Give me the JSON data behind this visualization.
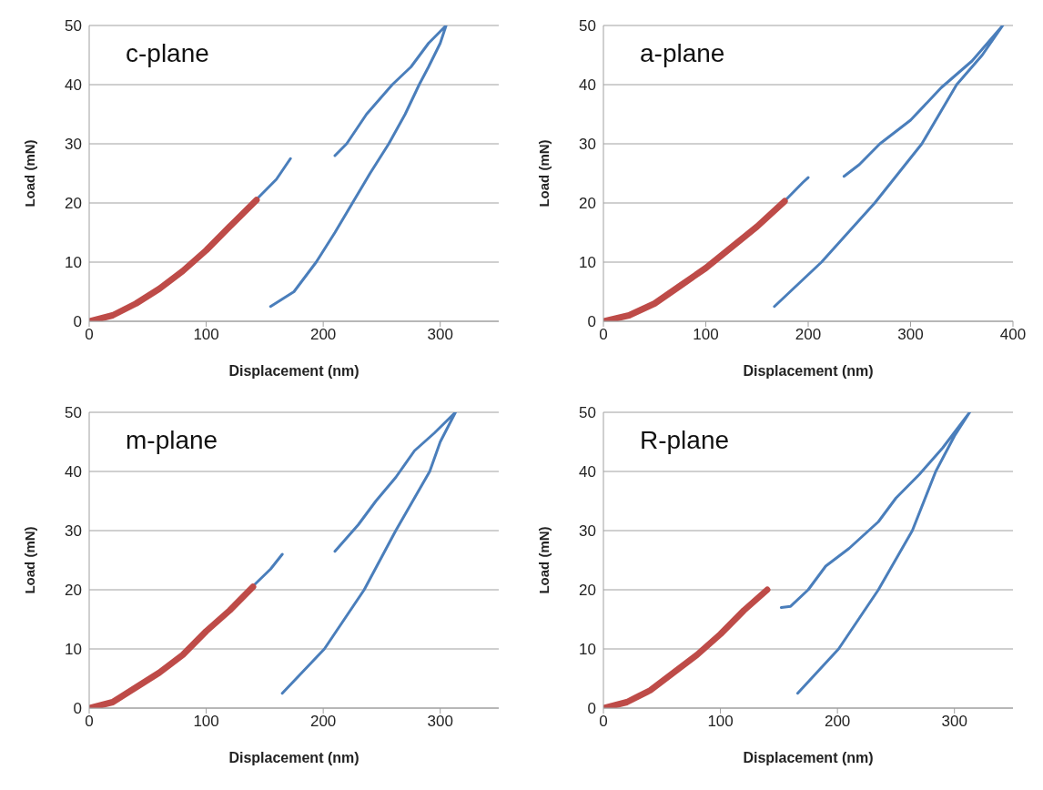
{
  "chart_data": [
    {
      "type": "line",
      "title": "c-plane",
      "xlabel": "Displacement (nm)",
      "ylabel": "Load (mN)",
      "xlim": [
        0,
        350
      ],
      "xticks": [
        0,
        100,
        200,
        300
      ],
      "ylim": [
        0,
        50
      ],
      "yticks": [
        0,
        10,
        20,
        30,
        40,
        50
      ],
      "grid": "y",
      "series": [
        {
          "color": "#4a7ebb",
          "x": [
            145,
            160,
            172,
            190,
            210,
            220,
            237,
            259,
            275,
            290,
            300,
            305,
            300,
            290,
            282,
            270,
            256,
            240,
            225,
            210,
            194,
            175,
            155
          ],
          "values": [
            21,
            24,
            27.5,
            null,
            28,
            30,
            35,
            40,
            43,
            47,
            49,
            50,
            47,
            43,
            40,
            35,
            30,
            25,
            20,
            15,
            10,
            5,
            2.5
          ]
        },
        {
          "color": "#be4b48",
          "x": [
            0,
            20,
            40,
            60,
            80,
            100,
            120,
            143
          ],
          "values": [
            0,
            1,
            3,
            5.5,
            8.5,
            12,
            16,
            20.5
          ]
        }
      ]
    },
    {
      "type": "line",
      "title": "a-plane",
      "xlabel": "Displacement (nm)",
      "ylabel": "Load (mN)",
      "xlim": [
        0,
        400
      ],
      "xticks": [
        0,
        100,
        200,
        300,
        400
      ],
      "ylim": [
        0,
        50
      ],
      "yticks": [
        0,
        10,
        20,
        30,
        40,
        50
      ],
      "grid": "y",
      "series": [
        {
          "color": "#4a7ebb",
          "x": [
            178,
            195,
            200,
            218,
            235,
            250,
            270,
            300,
            330,
            360,
            390,
            370,
            345,
            311,
            265,
            213,
            167
          ],
          "values": [
            20.5,
            23.5,
            24.3,
            null,
            24.5,
            26.5,
            30,
            34,
            39.5,
            44,
            50,
            45,
            40,
            30,
            20,
            10,
            2.5
          ]
        },
        {
          "color": "#be4b48",
          "x": [
            0,
            25,
            50,
            75,
            100,
            125,
            150,
            177
          ],
          "values": [
            0,
            1,
            3,
            6,
            9,
            12.5,
            16,
            20.3
          ]
        }
      ]
    },
    {
      "type": "line",
      "title": "m-plane",
      "xlabel": "Displacement (nm)",
      "ylabel": "Load (mN)",
      "xlim": [
        0,
        350
      ],
      "xticks": [
        0,
        100,
        200,
        300
      ],
      "ylim": [
        0,
        50
      ],
      "yticks": [
        0,
        10,
        20,
        30,
        40,
        50
      ],
      "grid": "y",
      "series": [
        {
          "color": "#4a7ebb",
          "x": [
            142,
            155,
            165,
            188,
            210,
            230,
            245,
            262,
            278,
            295,
            313,
            300,
            291,
            262,
            235,
            201,
            165
          ],
          "values": [
            21,
            23.5,
            26,
            null,
            26.5,
            31,
            35,
            39,
            43.5,
            46.5,
            50,
            45,
            40,
            30,
            20,
            10,
            2.5
          ]
        },
        {
          "color": "#be4b48",
          "x": [
            0,
            20,
            40,
            60,
            80,
            100,
            120,
            140
          ],
          "values": [
            0,
            1,
            3.5,
            6,
            9,
            13,
            16.5,
            20.5
          ]
        }
      ]
    },
    {
      "type": "line",
      "title": "R-plane",
      "xlabel": "Displacement (nm)",
      "ylabel": "Load (mN)",
      "xlim": [
        0,
        350
      ],
      "xticks": [
        0,
        100,
        200,
        300
      ],
      "ylim": [
        0,
        50
      ],
      "yticks": [
        0,
        10,
        20,
        30,
        40,
        50
      ],
      "grid": "y",
      "series": [
        {
          "color": "#4a7ebb",
          "x": [
            152,
            160,
            175,
            190,
            210,
            235,
            250,
            270,
            290,
            313,
            300,
            284,
            264,
            235,
            201,
            166
          ],
          "values": [
            17,
            17.2,
            20,
            24,
            27,
            31.5,
            35.5,
            39.5,
            44,
            50,
            46,
            40,
            30,
            20,
            10,
            2.5
          ]
        },
        {
          "color": "#be4b48",
          "x": [
            0,
            20,
            40,
            60,
            80,
            100,
            120,
            140
          ],
          "values": [
            0,
            1,
            3,
            6,
            9,
            12.5,
            16.5,
            20
          ]
        }
      ]
    }
  ]
}
